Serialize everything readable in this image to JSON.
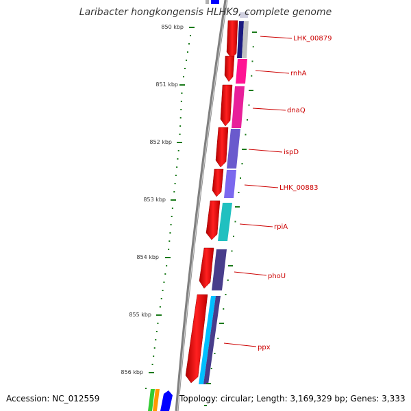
{
  "title": "Laribacter hongkongensis HLHK9, complete genome",
  "footer": {
    "accession": "Accession: NC_012559",
    "topology": "Topology: circular; Length: 3,169,329 bp; Genes: 3,333"
  },
  "scale": {
    "ticks": [
      {
        "label": "850 kbp"
      },
      {
        "label": "851 kbp"
      },
      {
        "label": "852 kbp"
      },
      {
        "label": "853 kbp"
      },
      {
        "label": "854 kbp"
      },
      {
        "label": "855 kbp"
      },
      {
        "label": "856 kbp"
      }
    ]
  },
  "genes": [
    {
      "name": "LHK_00879",
      "color": "#1a1a80"
    },
    {
      "name": "rnhA",
      "color": "#ff1493"
    },
    {
      "name": "dnaQ",
      "color": "#ff1493"
    },
    {
      "name": "ispD",
      "color": "#6a5acd"
    },
    {
      "name": "LHK_00883",
      "color": "#6a5acd"
    },
    {
      "name": "rpiA",
      "color": "#20c0c0"
    },
    {
      "name": "phoU",
      "color": "#483d8b"
    },
    {
      "name": "ppx",
      "color": "#00bfff"
    }
  ],
  "colors": {
    "cds": "#ff0000",
    "backbone": "#808080",
    "tick": "#1a7a1a",
    "label": "#cc0000"
  }
}
